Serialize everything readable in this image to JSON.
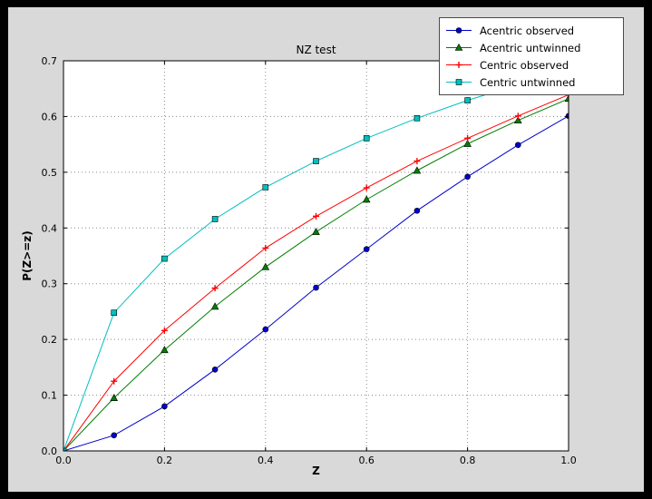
{
  "chart_data": {
    "type": "line",
    "title": "NZ test",
    "xlabel": "Z",
    "ylabel": "P(Z>=z)",
    "xlim": [
      0.0,
      1.0
    ],
    "ylim": [
      0.0,
      0.7
    ],
    "xticks": [
      "0.0",
      "0.2",
      "0.4",
      "0.6",
      "0.8",
      "1.0"
    ],
    "yticks": [
      "0.0",
      "0.1",
      "0.2",
      "0.3",
      "0.4",
      "0.5",
      "0.6",
      "0.7"
    ],
    "grid": "dotted",
    "legend_position": "upper right",
    "background_color": "#d9d9d9",
    "plot_background_color": "#ffffff",
    "x": [
      0.0,
      0.1,
      0.2,
      0.3,
      0.4,
      0.5,
      0.6,
      0.7,
      0.8,
      0.9,
      1.0
    ],
    "series": [
      {
        "name": "Acentric observed",
        "color": "#0000cd",
        "marker": "circle",
        "values": [
          0.0,
          0.028,
          0.08,
          0.146,
          0.218,
          0.293,
          0.362,
          0.431,
          0.492,
          0.549,
          0.601
        ]
      },
      {
        "name": "Acentric untwinned",
        "color": "#007f00",
        "marker": "triangle",
        "values": [
          0.0,
          0.095,
          0.181,
          0.259,
          0.33,
          0.393,
          0.451,
          0.503,
          0.551,
          0.593,
          0.632
        ]
      },
      {
        "name": "Centric observed",
        "color": "#ff0000",
        "marker": "plus",
        "values": [
          0.0,
          0.125,
          0.216,
          0.292,
          0.364,
          0.421,
          0.472,
          0.52,
          0.561,
          0.601,
          0.639
        ]
      },
      {
        "name": "Centric untwinned",
        "color": "#00bfbf",
        "marker": "square",
        "values": [
          0.0,
          0.248,
          0.345,
          0.416,
          0.473,
          0.52,
          0.561,
          0.597,
          0.629,
          0.657,
          0.683
        ]
      }
    ]
  }
}
